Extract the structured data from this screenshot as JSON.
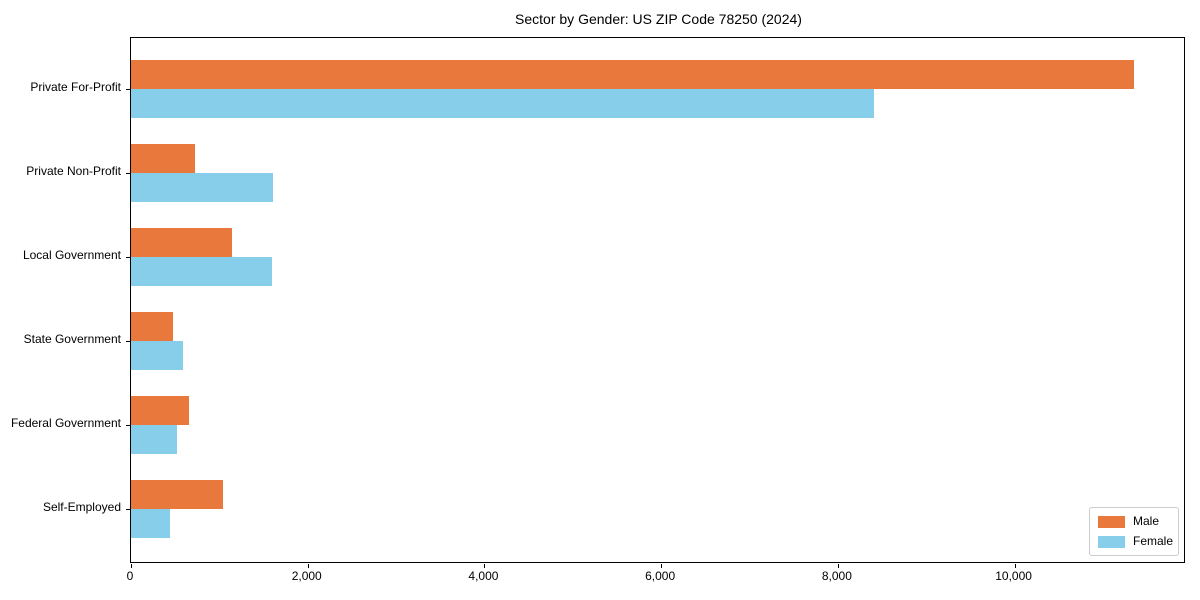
{
  "title": "Sector by Gender: US ZIP Code 78250 (2024)",
  "chart_data": {
    "type": "bar",
    "orientation": "horizontal",
    "title": "Sector by Gender: US ZIP Code 78250 (2024)",
    "xlabel": "",
    "ylabel": "",
    "categories": [
      "Private For-Profit",
      "Private Non-Profit",
      "Local Government",
      "State Government",
      "Federal Government",
      "Self-Employed"
    ],
    "series": [
      {
        "name": "Male",
        "color": "#E8783C",
        "values": [
          11370,
          730,
          1150,
          480,
          660,
          1040
        ]
      },
      {
        "name": "Female",
        "color": "#87CEEB",
        "values": [
          8420,
          1610,
          1600,
          590,
          520,
          440
        ]
      }
    ],
    "xlim": [
      0,
      11940
    ],
    "xticks": [
      0,
      2000,
      4000,
      6000,
      8000,
      10000
    ],
    "xtick_labels": [
      "0",
      "2,000",
      "4,000",
      "6,000",
      "8,000",
      "10,000"
    ],
    "grid": false,
    "legend_position": "lower right"
  }
}
